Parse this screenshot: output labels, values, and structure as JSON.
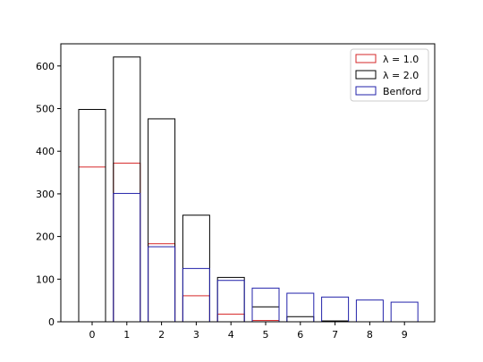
{
  "chart_data": {
    "type": "bar",
    "categories": [
      "0",
      "1",
      "2",
      "3",
      "4",
      "5",
      "6",
      "7",
      "8",
      "9"
    ],
    "series": [
      {
        "name": "λ = 1.0",
        "color": "#d62728",
        "values": [
          363,
          372,
          183,
          61,
          18,
          3,
          0,
          0,
          0,
          0
        ]
      },
      {
        "name": "λ = 2.0",
        "color": "#000000",
        "values": [
          498,
          621,
          476,
          250,
          104,
          35,
          12,
          2,
          0,
          0
        ]
      },
      {
        "name": "Benford",
        "color": "#2222aa",
        "values": [
          0,
          301,
          176,
          125,
          97,
          79,
          67,
          58,
          51,
          46
        ]
      }
    ],
    "title": "",
    "xlabel": "",
    "ylabel": "",
    "ylim": [
      0,
      652
    ],
    "yticks": [
      0,
      100,
      200,
      300,
      400,
      500,
      600
    ],
    "grid": false,
    "legend_position": "top-right"
  }
}
